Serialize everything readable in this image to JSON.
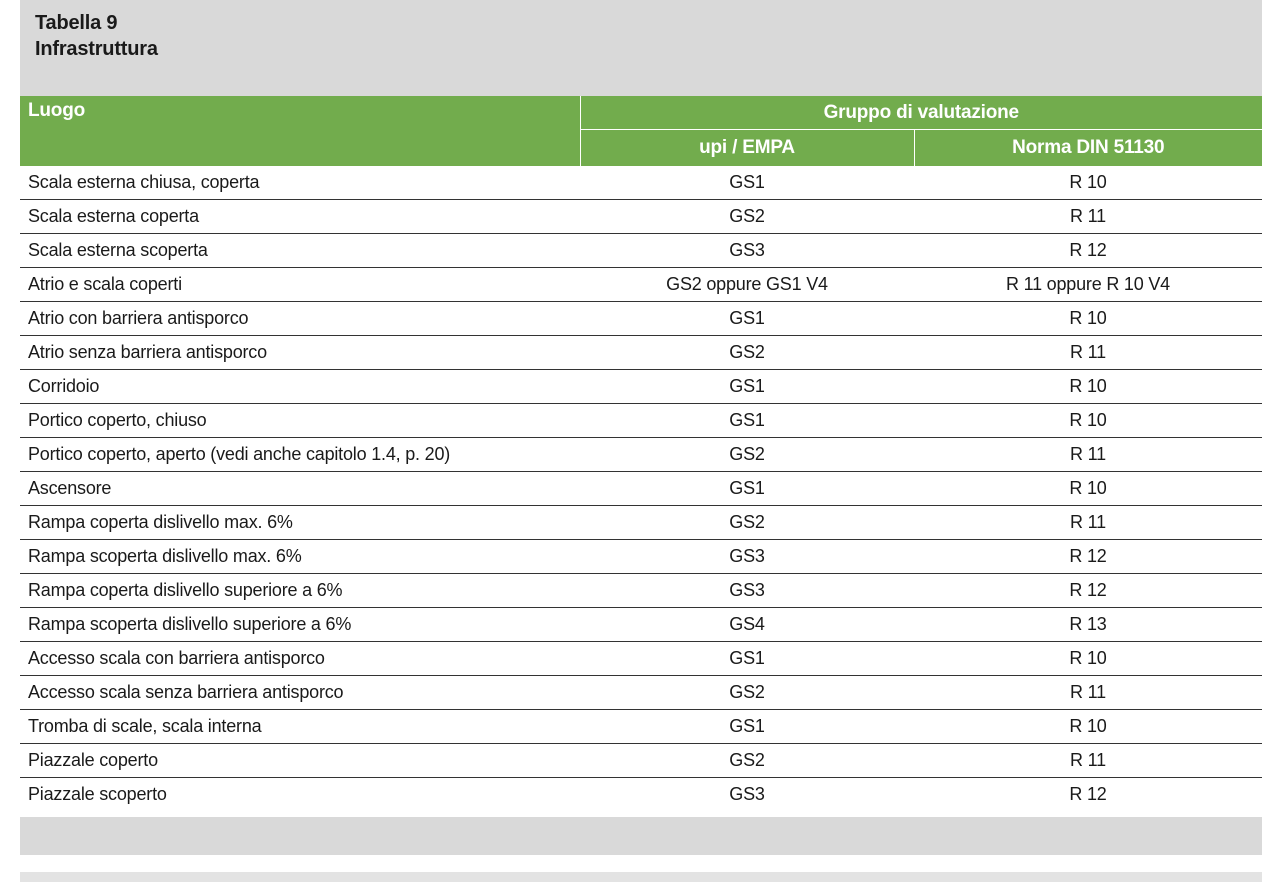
{
  "title": {
    "line1": "Tabella 9",
    "line2": "Infrastruttura"
  },
  "table": {
    "header": {
      "place": "Luogo",
      "group": "Gruppo di valutazione",
      "col_upi": "upi / EMPA",
      "col_din": "Norma DIN 51130"
    },
    "rows": [
      {
        "place": "Scala esterna chiusa, coperta",
        "upi": "GS1",
        "din": "R 10"
      },
      {
        "place": "Scala esterna coperta",
        "upi": "GS2",
        "din": "R 11"
      },
      {
        "place": "Scala esterna scoperta",
        "upi": "GS3",
        "din": "R 12"
      },
      {
        "place": "Atrio e scala coperti",
        "upi": "GS2 oppure GS1 V4",
        "din": "R 11 oppure R 10 V4"
      },
      {
        "place": "Atrio con barriera antisporco",
        "upi": "GS1",
        "din": "R 10"
      },
      {
        "place": "Atrio senza barriera antisporco",
        "upi": "GS2",
        "din": "R 11"
      },
      {
        "place": "Corridoio",
        "upi": "GS1",
        "din": "R 10"
      },
      {
        "place": "Portico coperto, chiuso",
        "upi": "GS1",
        "din": "R 10"
      },
      {
        "place": "Portico coperto, aperto (vedi anche capitolo 1.4, p. 20)",
        "upi": "GS2",
        "din": "R 11"
      },
      {
        "place": "Ascensore",
        "upi": "GS1",
        "din": "R 10"
      },
      {
        "place": "Rampa coperta dislivello max. 6%",
        "upi": "GS2",
        "din": "R 11"
      },
      {
        "place": "Rampa scoperta dislivello max. 6%",
        "upi": "GS3",
        "din": "R 12"
      },
      {
        "place": "Rampa coperta dislivello superiore a 6%",
        "upi": "GS3",
        "din": "R 12"
      },
      {
        "place": "Rampa scoperta dislivello superiore a 6%",
        "upi": "GS4",
        "din": "R 13"
      },
      {
        "place": "Accesso scala con barriera antisporco",
        "upi": "GS1",
        "din": "R 10"
      },
      {
        "place": "Accesso scala senza barriera antisporco",
        "upi": "GS2",
        "din": "R 11"
      },
      {
        "place": "Tromba di scale, scala interna",
        "upi": "GS1",
        "din": "R 10"
      },
      {
        "place": "Piazzale coperto",
        "upi": "GS2",
        "din": "R 11"
      },
      {
        "place": "Piazzale scoperto",
        "upi": "GS3",
        "din": "R 12"
      }
    ]
  },
  "colors": {
    "header_green": "#72ac4d",
    "title_gray": "#d9d9d9"
  }
}
